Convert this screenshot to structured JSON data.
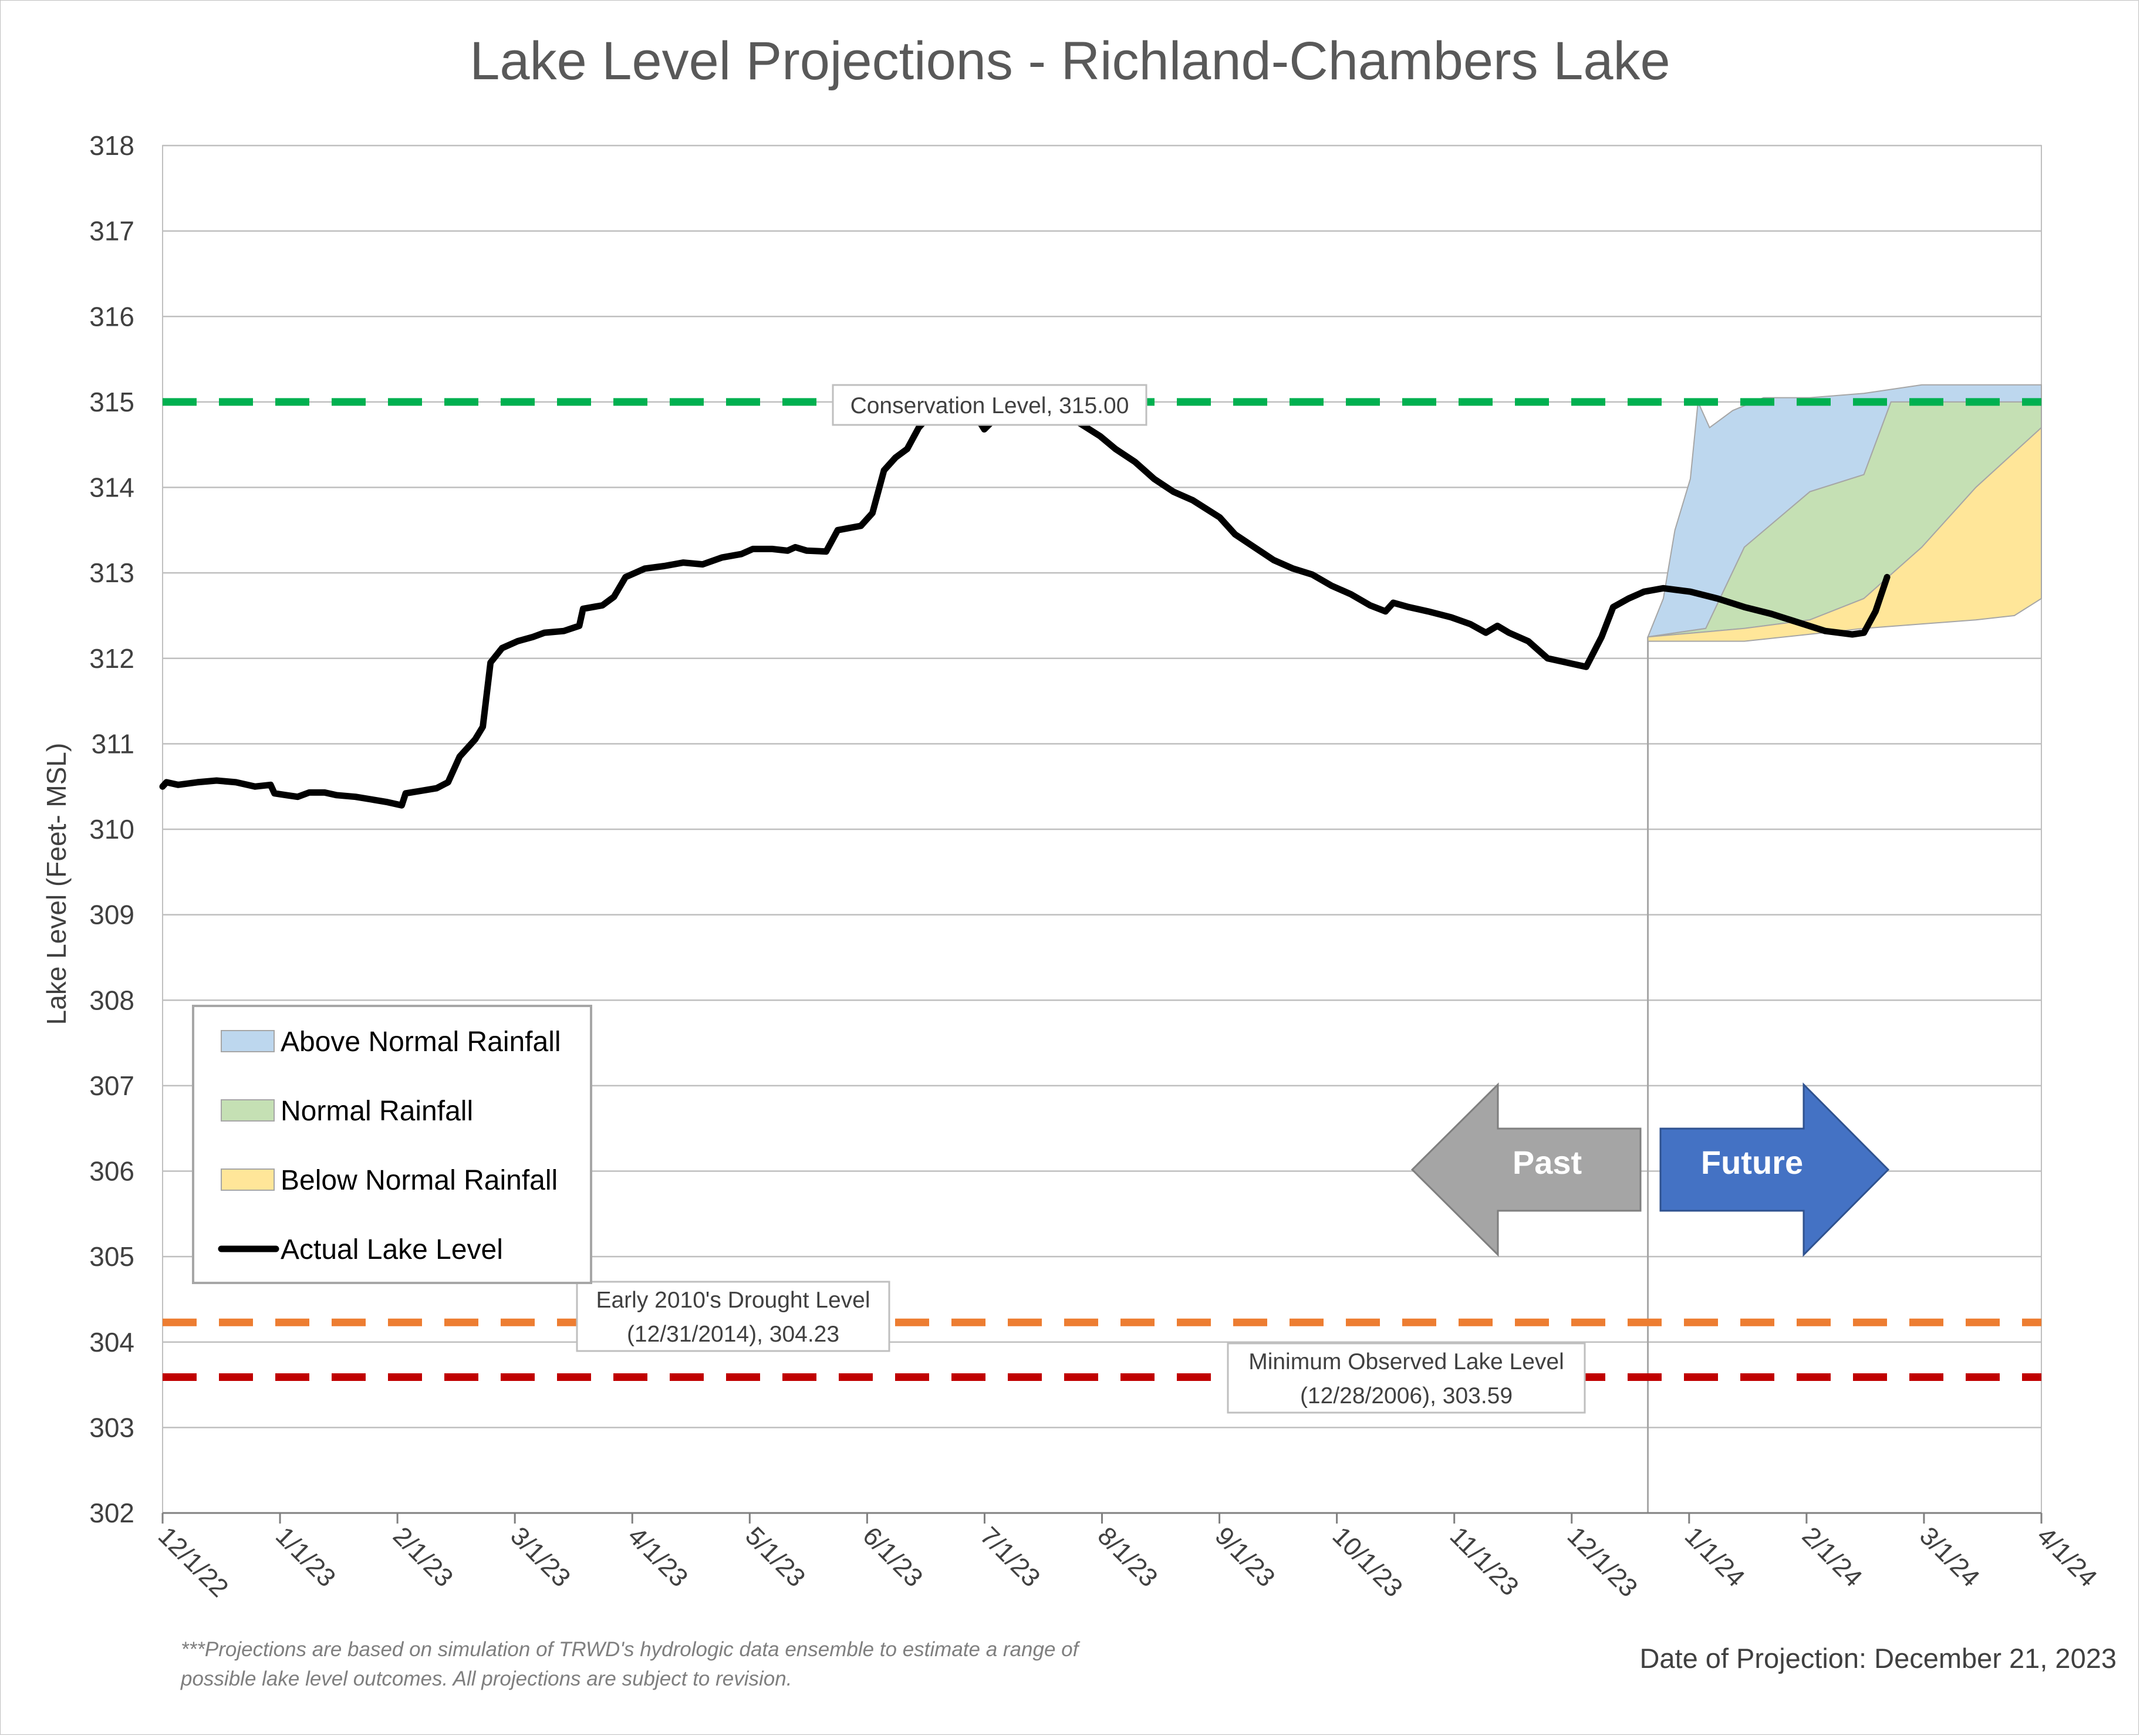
{
  "chart_data": {
    "type": "area",
    "title": "Lake Level Projections - Richland-Chambers Lake",
    "ylabel": "Lake Level (Feet- MSL)",
    "xlabel": "",
    "ylim": [
      302,
      318
    ],
    "xlim": [
      "2022-12-01",
      "2024-04-01"
    ],
    "grid": true,
    "x_tick_labels": [
      "12/1/22",
      "1/1/23",
      "2/1/23",
      "3/1/23",
      "4/1/23",
      "5/1/23",
      "6/1/23",
      "7/1/23",
      "8/1/23",
      "9/1/23",
      "10/1/23",
      "11/1/23",
      "12/1/23",
      "1/1/24",
      "2/1/24",
      "3/1/24",
      "4/1/24"
    ],
    "y_ticks": [
      302,
      303,
      304,
      305,
      306,
      307,
      308,
      309,
      310,
      311,
      312,
      313,
      314,
      315,
      316,
      317,
      318
    ],
    "projection_start": "2023-12-21",
    "legend_position": "bottom-left",
    "series": [
      {
        "name": "Actual Lake Level",
        "style": "line",
        "color": "#000000",
        "points": [
          [
            "2022-12-01",
            310.5
          ],
          [
            "2022-12-02",
            310.55
          ],
          [
            "2022-12-05",
            310.52
          ],
          [
            "2022-12-10",
            310.55
          ],
          [
            "2022-12-15",
            310.57
          ],
          [
            "2022-12-20",
            310.55
          ],
          [
            "2022-12-25",
            310.5
          ],
          [
            "2022-12-29",
            310.52
          ],
          [
            "2022-12-30",
            310.42
          ],
          [
            "2023-01-02",
            310.4
          ],
          [
            "2023-01-05",
            310.38
          ],
          [
            "2023-01-08",
            310.43
          ],
          [
            "2023-01-12",
            310.43
          ],
          [
            "2023-01-15",
            310.4
          ],
          [
            "2023-01-20",
            310.38
          ],
          [
            "2023-01-24",
            310.35
          ],
          [
            "2023-01-28",
            310.32
          ],
          [
            "2023-02-01",
            310.28
          ],
          [
            "2023-02-02",
            310.42
          ],
          [
            "2023-02-06",
            310.45
          ],
          [
            "2023-02-10",
            310.48
          ],
          [
            "2023-02-13",
            310.55
          ],
          [
            "2023-02-16",
            310.85
          ],
          [
            "2023-02-20",
            311.05
          ],
          [
            "2023-02-22",
            311.2
          ],
          [
            "2023-02-24",
            311.95
          ],
          [
            "2023-02-27",
            312.12
          ],
          [
            "2023-03-03",
            312.2
          ],
          [
            "2023-03-07",
            312.25
          ],
          [
            "2023-03-10",
            312.3
          ],
          [
            "2023-03-15",
            312.32
          ],
          [
            "2023-03-19",
            312.38
          ],
          [
            "2023-03-20",
            312.58
          ],
          [
            "2023-03-25",
            312.62
          ],
          [
            "2023-03-28",
            312.72
          ],
          [
            "2023-03-31",
            312.95
          ],
          [
            "2023-04-05",
            313.05
          ],
          [
            "2023-04-10",
            313.08
          ],
          [
            "2023-04-15",
            313.12
          ],
          [
            "2023-04-20",
            313.1
          ],
          [
            "2023-04-25",
            313.18
          ],
          [
            "2023-04-30",
            313.22
          ],
          [
            "2023-05-03",
            313.28
          ],
          [
            "2023-05-08",
            313.28
          ],
          [
            "2023-05-12",
            313.26
          ],
          [
            "2023-05-14",
            313.3
          ],
          [
            "2023-05-17",
            313.26
          ],
          [
            "2023-05-22",
            313.25
          ],
          [
            "2023-05-25",
            313.5
          ],
          [
            "2023-05-31",
            313.55
          ],
          [
            "2023-06-03",
            313.7
          ],
          [
            "2023-06-06",
            314.2
          ],
          [
            "2023-06-09",
            314.35
          ],
          [
            "2023-06-12",
            314.45
          ],
          [
            "2023-06-15",
            314.7
          ],
          [
            "2023-06-18",
            314.85
          ],
          [
            "2023-06-22",
            314.95
          ],
          [
            "2023-06-25",
            314.92
          ],
          [
            "2023-06-28",
            314.8
          ],
          [
            "2023-07-01",
            314.75
          ],
          [
            "2023-07-02",
            314.68
          ],
          [
            "2023-07-08",
            314.95
          ],
          [
            "2023-07-20",
            314.9
          ],
          [
            "2023-07-25",
            314.8
          ],
          [
            "2023-08-01",
            314.6
          ],
          [
            "2023-08-05",
            314.45
          ],
          [
            "2023-08-10",
            314.3
          ],
          [
            "2023-08-15",
            314.1
          ],
          [
            "2023-08-20",
            313.95
          ],
          [
            "2023-08-25",
            313.85
          ],
          [
            "2023-09-01",
            313.65
          ],
          [
            "2023-09-05",
            313.45
          ],
          [
            "2023-09-10",
            313.3
          ],
          [
            "2023-09-15",
            313.15
          ],
          [
            "2023-09-20",
            313.05
          ],
          [
            "2023-09-25",
            312.98
          ],
          [
            "2023-09-30",
            312.85
          ],
          [
            "2023-10-05",
            312.75
          ],
          [
            "2023-10-10",
            312.62
          ],
          [
            "2023-10-14",
            312.55
          ],
          [
            "2023-10-16",
            312.65
          ],
          [
            "2023-10-20",
            312.6
          ],
          [
            "2023-10-25",
            312.55
          ],
          [
            "2023-10-31",
            312.48
          ],
          [
            "2023-11-05",
            312.4
          ],
          [
            "2023-11-09",
            312.3
          ],
          [
            "2023-11-12",
            312.38
          ],
          [
            "2023-11-15",
            312.3
          ],
          [
            "2023-11-20",
            312.2
          ],
          [
            "2023-11-25",
            312.0
          ],
          [
            "2023-11-30",
            311.95
          ],
          [
            "2023-12-05",
            311.9
          ],
          [
            "2023-12-09",
            312.25
          ],
          [
            "2023-12-12",
            312.6
          ],
          [
            "2023-12-16",
            312.7
          ],
          [
            "2023-12-20",
            312.78
          ],
          [
            "2023-12-25",
            312.82
          ],
          [
            "2024-01-01",
            312.78
          ],
          [
            "2024-01-08",
            312.7
          ],
          [
            "2024-01-15",
            312.6
          ],
          [
            "2024-01-22",
            312.52
          ],
          [
            "2024-01-29",
            312.42
          ],
          [
            "2024-02-05",
            312.32
          ],
          [
            "2024-02-12",
            312.28
          ],
          [
            "2024-02-15",
            312.3
          ],
          [
            "2024-02-18",
            312.55
          ],
          [
            "2024-02-21",
            312.95
          ]
        ]
      },
      {
        "name": "Above Normal Rainfall",
        "style": "band",
        "color": "#BDD7EE",
        "upper": [
          [
            "2023-12-21",
            312.25
          ],
          [
            "2023-12-25",
            312.7
          ],
          [
            "2023-12-28",
            313.5
          ],
          [
            "2024-01-01",
            314.1
          ],
          [
            "2024-01-03",
            315.0
          ],
          [
            "2024-01-06",
            314.7
          ],
          [
            "2024-01-12",
            314.9
          ],
          [
            "2024-01-20",
            315.05
          ],
          [
            "2024-02-01",
            315.05
          ],
          [
            "2024-02-15",
            315.1
          ],
          [
            "2024-03-01",
            315.2
          ],
          [
            "2024-03-15",
            315.2
          ],
          [
            "2024-04-01",
            315.2
          ]
        ],
        "lower": [
          [
            "2023-12-21",
            312.25
          ],
          [
            "2024-01-05",
            312.35
          ],
          [
            "2024-01-15",
            313.3
          ],
          [
            "2024-02-01",
            313.95
          ],
          [
            "2024-02-15",
            314.15
          ],
          [
            "2024-02-22",
            315.0
          ],
          [
            "2024-04-01",
            315.0
          ]
        ]
      },
      {
        "name": "Normal Rainfall",
        "style": "band",
        "color": "#C5E0B4",
        "upper": [
          [
            "2023-12-21",
            312.25
          ],
          [
            "2024-01-05",
            312.35
          ],
          [
            "2024-01-15",
            313.3
          ],
          [
            "2024-02-01",
            313.95
          ],
          [
            "2024-02-15",
            314.15
          ],
          [
            "2024-02-22",
            315.0
          ],
          [
            "2024-04-01",
            315.0
          ]
        ],
        "lower": [
          [
            "2023-12-21",
            312.25
          ],
          [
            "2024-01-15",
            312.35
          ],
          [
            "2024-02-01",
            312.45
          ],
          [
            "2024-02-15",
            312.7
          ],
          [
            "2024-03-01",
            313.3
          ],
          [
            "2024-03-15",
            314.0
          ],
          [
            "2024-04-01",
            314.7
          ]
        ]
      },
      {
        "name": "Below Normal Rainfall",
        "style": "band",
        "color": "#FFE699",
        "upper": [
          [
            "2023-12-21",
            312.25
          ],
          [
            "2024-01-15",
            312.35
          ],
          [
            "2024-02-01",
            312.45
          ],
          [
            "2024-02-15",
            312.7
          ],
          [
            "2024-03-01",
            313.3
          ],
          [
            "2024-03-15",
            314.0
          ],
          [
            "2024-04-01",
            314.7
          ]
        ],
        "lower": [
          [
            "2023-12-21",
            312.2
          ],
          [
            "2024-01-15",
            312.2
          ],
          [
            "2024-02-15",
            312.35
          ],
          [
            "2024-03-15",
            312.45
          ],
          [
            "2024-03-25",
            312.5
          ],
          [
            "2024-04-01",
            312.7
          ]
        ]
      }
    ],
    "reference_lines": [
      {
        "label": "Conservation Level, 315.00",
        "value": 315.0,
        "color": "#00B050"
      },
      {
        "label": "Early 2010's Drought Level (12/31/2014), 304.23",
        "label_line1": "Early 2010's Drought Level",
        "label_line2": "(12/31/2014), 304.23",
        "value": 304.23,
        "color": "#ED7D31"
      },
      {
        "label": "Minimum Observed Lake Level (12/28/2006), 303.59",
        "label_line1": "Minimum Observed Lake Level",
        "label_line2": "(12/28/2006), 303.59",
        "value": 303.59,
        "color": "#C00000"
      }
    ],
    "arrows": [
      {
        "label": "Past",
        "direction": "left",
        "color": "#A5A5A5"
      },
      {
        "label": "Future",
        "direction": "right",
        "color": "#4472C4"
      }
    ],
    "legend": [
      {
        "label": "Above Normal Rainfall",
        "swatch": "#BDD7EE"
      },
      {
        "label": "Normal Rainfall",
        "swatch": "#C5E0B4"
      },
      {
        "label": "Below Normal Rainfall",
        "swatch": "#FFE699"
      },
      {
        "label": "Actual Lake Level",
        "swatch": "#000000"
      }
    ]
  },
  "footnote": "***Projections are based on simulation of TRWD's hydrologic data ensemble to estimate a range of possible lake level outcomes.  All projections are subject to revision.",
  "projection_date_text": "Date of Projection: December 21, 2023"
}
